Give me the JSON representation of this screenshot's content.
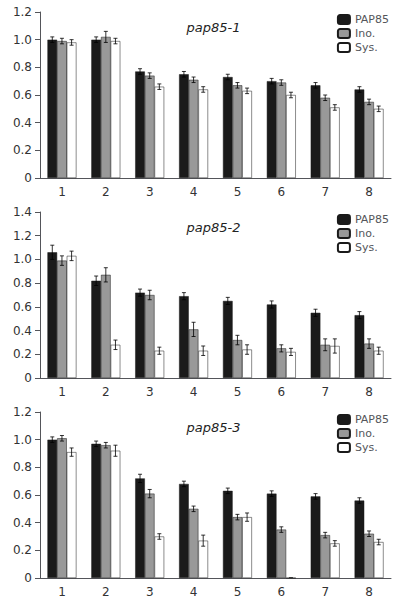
{
  "chart_data": [
    {
      "type": "bar",
      "title": "pap85-1",
      "categories": [
        "1",
        "2",
        "3",
        "4",
        "5",
        "6",
        "7",
        "8"
      ],
      "series": [
        {
          "name": "PAP85",
          "color": "#1a1a1a",
          "values": [
            1.0,
            1.0,
            0.77,
            0.75,
            0.73,
            0.7,
            0.67,
            0.64
          ],
          "errors": [
            0.02,
            0.02,
            0.02,
            0.02,
            0.02,
            0.02,
            0.02,
            0.02
          ]
        },
        {
          "name": "Ino.",
          "color": "#999999",
          "values": [
            0.99,
            1.02,
            0.74,
            0.71,
            0.67,
            0.69,
            0.58,
            0.55
          ],
          "errors": [
            0.02,
            0.04,
            0.02,
            0.02,
            0.02,
            0.02,
            0.02,
            0.02
          ]
        },
        {
          "name": "Sys.",
          "color": "#ffffff",
          "values": [
            0.98,
            0.99,
            0.66,
            0.64,
            0.63,
            0.6,
            0.51,
            0.5
          ],
          "errors": [
            0.02,
            0.02,
            0.02,
            0.02,
            0.02,
            0.02,
            0.02,
            0.02
          ]
        }
      ],
      "ylim": [
        0,
        1.2
      ],
      "yticks": [
        0,
        0.2,
        0.4,
        0.6,
        0.8,
        {
          "value": 1.0,
          "label": "1.0"
        },
        1.2
      ],
      "grid": false,
      "legend": "upper right"
    },
    {
      "type": "bar",
      "title": "pap85-2",
      "categories": [
        "1",
        "2",
        "3",
        "4",
        "5",
        "6",
        "7",
        "8"
      ],
      "series": [
        {
          "name": "PAP85",
          "color": "#1a1a1a",
          "values": [
            1.06,
            0.82,
            0.72,
            0.69,
            0.65,
            0.62,
            0.55,
            0.53
          ],
          "errors": [
            0.06,
            0.04,
            0.03,
            0.03,
            0.03,
            0.03,
            0.03,
            0.03
          ]
        },
        {
          "name": "Ino.",
          "color": "#999999",
          "values": [
            0.99,
            0.87,
            0.7,
            0.41,
            0.32,
            0.25,
            0.28,
            0.29
          ],
          "errors": [
            0.04,
            0.06,
            0.04,
            0.06,
            0.04,
            0.03,
            0.05,
            0.04
          ]
        },
        {
          "name": "Sys.",
          "color": "#ffffff",
          "values": [
            1.03,
            0.28,
            0.23,
            0.23,
            0.24,
            0.22,
            0.27,
            0.23
          ],
          "errors": [
            0.04,
            0.04,
            0.03,
            0.04,
            0.04,
            0.03,
            0.06,
            0.03
          ]
        }
      ],
      "ylim": [
        0,
        1.4
      ],
      "yticks": [
        0,
        0.2,
        0.4,
        0.6,
        0.8,
        {
          "value": 1.0,
          "label": "1.0"
        },
        1.2,
        1.4
      ],
      "grid": false,
      "legend": "upper right"
    },
    {
      "type": "bar",
      "title": "pap85-3",
      "categories": [
        "1",
        "2",
        "3",
        "4",
        "5",
        "6",
        "7",
        "8"
      ],
      "series": [
        {
          "name": "PAP85",
          "color": "#1a1a1a",
          "values": [
            1.0,
            0.97,
            0.72,
            0.68,
            0.63,
            0.61,
            0.59,
            0.56
          ],
          "errors": [
            0.02,
            0.02,
            0.03,
            0.02,
            0.02,
            0.02,
            0.02,
            0.02
          ]
        },
        {
          "name": "Ino.",
          "color": "#999999",
          "values": [
            1.01,
            0.96,
            0.61,
            0.5,
            0.44,
            0.35,
            0.31,
            0.32
          ],
          "errors": [
            0.02,
            0.02,
            0.03,
            0.02,
            0.02,
            0.02,
            0.02,
            0.02
          ]
        },
        {
          "name": "Sys.",
          "color": "#ffffff",
          "values": [
            0.91,
            0.92,
            0.3,
            0.27,
            0.44,
            0.0,
            0.25,
            0.26
          ],
          "errors": [
            0.03,
            0.04,
            0.02,
            0.04,
            0.03,
            0.0,
            0.02,
            0.02
          ]
        }
      ],
      "ylim": [
        0,
        1.2
      ],
      "yticks": [
        0,
        0.2,
        0.4,
        0.6,
        0.8,
        {
          "value": 1.0,
          "label": "1.0"
        },
        1.2
      ],
      "grid": false,
      "legend": "upper right"
    }
  ]
}
